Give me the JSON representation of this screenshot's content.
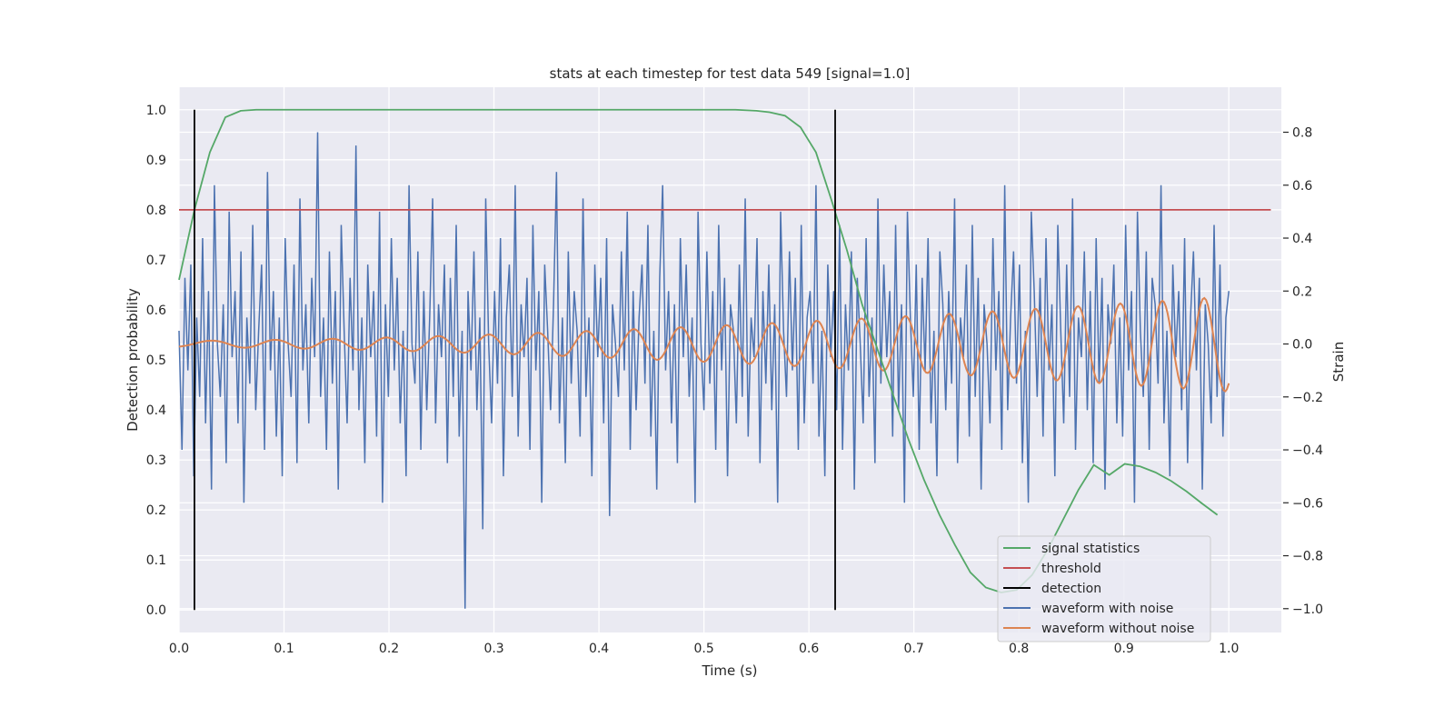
{
  "chart_data": {
    "type": "line",
    "title": "stats at each timestep for test data 549 [signal=1.0]",
    "xlabel": "Time (s)",
    "ylabel": "Detection probability",
    "y2label": "Strain",
    "xlim": [
      0.0,
      1.05
    ],
    "ylim": [
      -0.045,
      1.045
    ],
    "y2lim": [
      -1.09,
      0.97
    ],
    "xticks": [
      "0.0",
      "0.1",
      "0.2",
      "0.3",
      "0.4",
      "0.5",
      "0.6",
      "0.7",
      "0.8",
      "0.9",
      "1.0"
    ],
    "yticks": [
      "0.0",
      "0.1",
      "0.2",
      "0.3",
      "0.4",
      "0.5",
      "0.6",
      "0.7",
      "0.8",
      "0.9",
      "1.0"
    ],
    "y2ticks": [
      "−1.0",
      "−0.8",
      "−0.6",
      "−0.4",
      "−0.2",
      "0.0",
      "0.2",
      "0.4",
      "0.6",
      "0.8"
    ],
    "grid": true,
    "legend_position": "lower-right",
    "threshold": 0.8,
    "detections": [
      0.0147,
      0.625
    ],
    "colors": {
      "signal_statistics": "#55a868",
      "threshold": "#c44e52",
      "detection": "#000000",
      "waveform_with_noise": "#4c72b0",
      "waveform_without_noise": "#dd8452",
      "background": "#eaeaf2",
      "grid": "#ffffff"
    },
    "series": [
      {
        "name": "signal statistics",
        "axis": "left",
        "x": [
          0.0,
          0.0147,
          0.0294,
          0.0441,
          0.0588,
          0.0735,
          0.088,
          0.103,
          0.2,
          0.3,
          0.4,
          0.5,
          0.53,
          0.55,
          0.5625,
          0.5773,
          0.592,
          0.6067,
          0.6214,
          0.6361,
          0.6508,
          0.6655,
          0.6802,
          0.695,
          0.7097,
          0.7244,
          0.7391,
          0.7538,
          0.7685,
          0.7832,
          0.7979,
          0.8126,
          0.8273,
          0.842,
          0.8567,
          0.8714,
          0.8861,
          0.9008,
          0.9155,
          0.9302,
          0.945,
          0.9597,
          0.9744,
          0.9891
        ],
        "values": [
          0.66,
          0.8,
          0.915,
          0.985,
          0.998,
          1.0,
          1.0,
          1.0,
          1.0,
          1.0,
          1.0,
          1.0,
          1.0,
          0.998,
          0.995,
          0.988,
          0.965,
          0.915,
          0.82,
          0.72,
          0.61,
          0.52,
          0.43,
          0.34,
          0.26,
          0.19,
          0.13,
          0.075,
          0.045,
          0.035,
          0.04,
          0.07,
          0.12,
          0.18,
          0.24,
          0.29,
          0.27,
          0.292,
          0.287,
          0.275,
          0.258,
          0.237,
          0.213,
          0.19
        ]
      },
      {
        "name": "threshold",
        "axis": "left",
        "x": [
          0.0,
          1.04
        ],
        "values": [
          0.8,
          0.8
        ]
      },
      {
        "name": "detection",
        "axis": "left",
        "x": [
          0.0147,
          0.625
        ],
        "values": [
          1.0,
          1.0
        ]
      },
      {
        "name": "waveform with noise",
        "axis": "right",
        "x_start": 0.0,
        "x_end": 1.0,
        "values": [
          0.05,
          -0.4,
          0.25,
          -0.1,
          0.3,
          -0.5,
          0.1,
          -0.2,
          0.4,
          -0.3,
          0.2,
          -0.55,
          0.6,
          0.0,
          -0.2,
          0.15,
          -0.45,
          0.5,
          -0.05,
          0.2,
          -0.3,
          0.35,
          -0.6,
          0.1,
          -0.15,
          0.45,
          -0.25,
          0.05,
          0.3,
          -0.4,
          0.65,
          -0.1,
          0.2,
          -0.35,
          0.1,
          -0.5,
          0.4,
          0.0,
          -0.2,
          0.3,
          -0.45,
          0.55,
          -0.1,
          0.15,
          -0.3,
          0.25,
          -0.05,
          0.8,
          -0.2,
          0.1,
          -0.4,
          0.35,
          -0.15,
          0.2,
          -0.55,
          0.45,
          0.05,
          -0.3,
          0.25,
          -0.1,
          0.75,
          -0.25,
          0.1,
          -0.45,
          0.3,
          -0.05,
          0.2,
          -0.35,
          0.5,
          -0.6,
          0.15,
          -0.2,
          0.4,
          -0.1,
          0.25,
          -0.3,
          0.05,
          -0.5,
          0.6,
          0.0,
          -0.15,
          0.35,
          -0.4,
          0.2,
          -0.25,
          0.1,
          0.55,
          -0.3,
          0.15,
          -0.05,
          0.3,
          -0.45,
          0.25,
          -0.2,
          0.45,
          -0.35,
          0.05,
          -1.0,
          0.2,
          -0.1,
          0.35,
          -0.25,
          0.1,
          -0.7,
          0.55,
          0.0,
          -0.3,
          0.2,
          -0.15,
          0.4,
          -0.5,
          0.1,
          0.3,
          -0.2,
          0.6,
          -0.35,
          0.15,
          -0.05,
          0.25,
          -0.4,
          0.45,
          -0.1,
          0.2,
          -0.6,
          0.3,
          0.05,
          -0.25,
          0.15,
          0.65,
          -0.3,
          0.1,
          -0.45,
          0.35,
          -0.15,
          0.2,
          0.05,
          -0.35,
          0.55,
          -0.2,
          0.1,
          -0.5,
          0.3,
          -0.05,
          0.25,
          -0.3,
          0.4,
          -0.65,
          0.15,
          0.0,
          -0.2,
          0.35,
          -0.1,
          0.5,
          -0.4,
          0.2,
          -0.25,
          0.1,
          0.3,
          -0.15,
          0.45,
          -0.35,
          0.05,
          -0.55,
          0.25,
          0.6,
          -0.1,
          0.2,
          -0.3,
          0.15,
          -0.45,
          0.4,
          -0.05,
          0.3,
          -0.2,
          0.1,
          -0.6,
          0.5,
          0.0,
          -0.25,
          0.35,
          -0.15,
          0.2,
          -0.4,
          0.45,
          -0.1,
          0.25,
          -0.5,
          0.15,
          0.05,
          -0.3,
          0.3,
          -0.2,
          0.55,
          -0.35,
          0.1,
          -0.05,
          0.4,
          -0.45,
          0.2,
          -0.15,
          0.3,
          -0.25,
          0.15,
          -0.6,
          0.5,
          0.05,
          -0.2,
          0.35,
          -0.1,
          0.25,
          -0.4,
          0.45,
          -0.3,
          0.1,
          0.2,
          -0.15,
          0.6,
          -0.35,
          0.05,
          -0.5,
          0.3,
          -0.05,
          0.2,
          -0.25,
          0.45,
          -0.4,
          0.15,
          -0.1,
          0.35,
          -0.55,
          0.25,
          0.0,
          -0.3,
          0.4,
          -0.2,
          0.1,
          -0.45,
          0.55,
          -0.15,
          0.3,
          -0.05,
          0.2,
          -0.35,
          0.45,
          -0.25,
          0.15,
          -0.6,
          0.5,
          0.1,
          -0.2,
          0.3,
          -0.4,
          0.25,
          -0.1,
          0.4,
          -0.3,
          0.05,
          -0.5,
          0.35,
          0.15,
          -0.25,
          0.2,
          -0.15,
          0.55,
          -0.45,
          0.1,
          -0.05,
          0.3,
          -0.35,
          0.45,
          -0.2,
          0.25,
          -0.55,
          0.15,
          0.0,
          -0.3,
          0.4,
          -0.1,
          0.2,
          -0.4,
          0.6,
          -0.25,
          0.1,
          0.35,
          -0.15,
          0.3,
          -0.45,
          0.05,
          -0.6,
          0.5,
          0.2,
          -0.2,
          0.25,
          -0.35,
          0.4,
          -0.1,
          0.15,
          -0.5,
          0.45,
          0.05,
          -0.3,
          0.3,
          -0.2,
          0.55,
          -0.4,
          0.1,
          -0.05,
          0.35,
          -0.25,
          0.2,
          -0.45,
          0.4,
          -0.15,
          0.25,
          -0.55,
          0.15,
          0.0,
          0.3,
          -0.3,
          0.1,
          -0.35,
          0.45,
          -0.1,
          0.2,
          -0.6,
          0.5,
          0.05,
          -0.2,
          0.35,
          -0.4,
          0.25,
          0.15,
          -0.15,
          0.6,
          -0.3,
          0.05,
          -0.5,
          0.3,
          -0.05,
          0.2,
          -0.25,
          0.4,
          -0.45,
          0.1,
          0.35,
          -0.1,
          0.25,
          -0.55,
          0.15,
          0.0,
          -0.3,
          0.45,
          -0.2,
          0.3,
          -0.35,
          0.1,
          0.2
        ]
      },
      {
        "name": "waveform without noise",
        "axis": "right",
        "note_x_start": 0.0,
        "note_x_end": 1.0,
        "amplitude_start": 0.012,
        "amplitude_end": 0.18,
        "cycles": 22
      }
    ]
  }
}
